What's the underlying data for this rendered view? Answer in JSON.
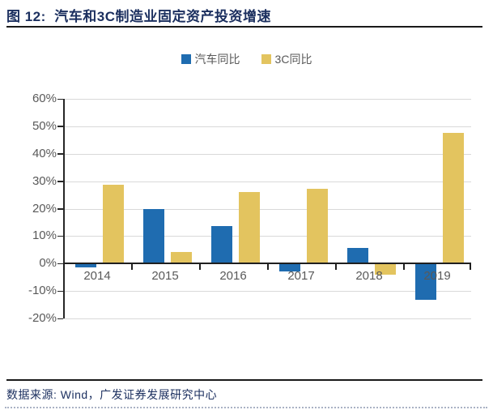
{
  "figure": {
    "title": "图 12:  汽车和3C制造业固定资产投资增速",
    "source": "数据来源: Wind，广发证券发展研究中心"
  },
  "colors": {
    "auto_series": "#1f6cb0",
    "c3_series": "#e3c45f",
    "title_navy": "#1b2f5f",
    "axis_dark": "#1f1f1f",
    "gridline_gray": "#d9d9d9",
    "label_gray": "#595959"
  },
  "chart_data": {
    "type": "bar",
    "title": "汽车和3C制造业固定资产投资增速",
    "categories": [
      "2014",
      "2015",
      "2016",
      "2017",
      "2018",
      "2019"
    ],
    "series": [
      {
        "name": "汽车同比",
        "color": "#1f6cb0",
        "values": [
          -1.5,
          19.8,
          13.6,
          -3.0,
          5.6,
          -13.3
        ]
      },
      {
        "name": "3C同比",
        "color": "#e3c45f",
        "values": [
          28.7,
          4.3,
          26.1,
          27.3,
          -4.2,
          47.5
        ]
      }
    ],
    "xlabel": "",
    "ylabel": "",
    "ylim": [
      -20,
      60
    ],
    "ytick_step": 10,
    "ytick_format": "percent",
    "grid": true,
    "legend_position": "top"
  }
}
